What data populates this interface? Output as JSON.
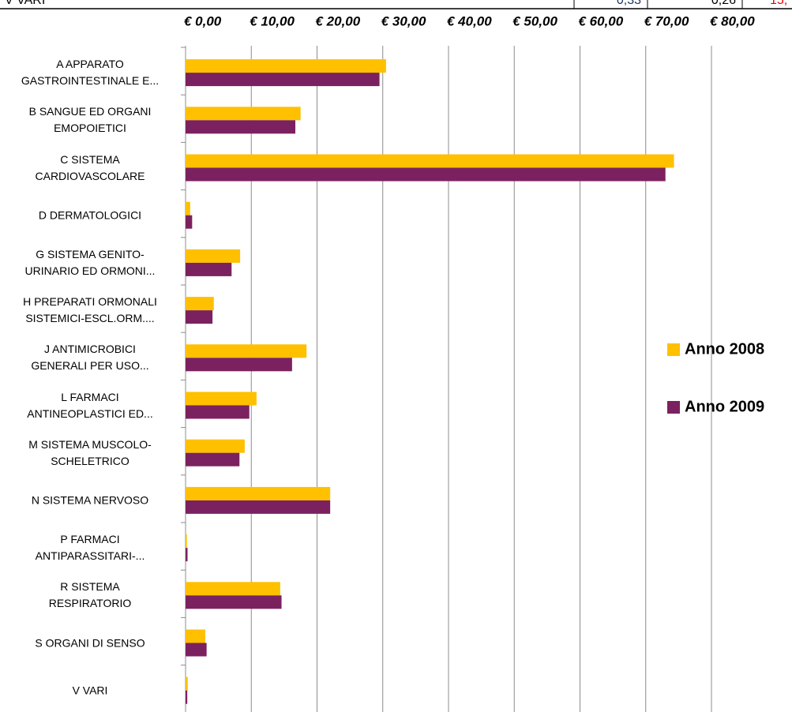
{
  "table": {
    "rows": [
      [
        "V VARI",
        "0,33",
        "0,26",
        "15,"
      ]
    ]
  },
  "chart_data": {
    "type": "barh",
    "categories": [
      "A APPARATO\nGASTROINTESTINALE E...",
      "B SANGUE ED ORGANI\nEMOPOIETICI",
      "C SISTEMA\nCARDIOVASCOLARE",
      "D DERMATOLOGICI",
      "G SISTEMA GENITO-\nURINARIO ED ORMONI...",
      "H PREPARATI ORMONALI\nSISTEMICI-ESCL.ORM....",
      "J ANTIMICROBICI\nGENERALI PER USO...",
      "L FARMACI\nANTINEOPLASTICI ED...",
      "M SISTEMA MUSCOLO-\nSCHELETRICO",
      "N SISTEMA NERVOSO",
      "P FARMACI\nANTIPARASSITARI-...",
      "R SISTEMA\nRESPIRATORIO",
      "S ORGANI DI SENSO",
      "V VARI"
    ],
    "series": [
      {
        "name": "Anno 2008",
        "color": "#ffc000",
        "values": [
          30.5,
          17.5,
          74.3,
          0.7,
          8.3,
          4.3,
          18.4,
          10.8,
          9.0,
          22.0,
          0.2,
          14.4,
          3.0,
          0.33
        ]
      },
      {
        "name": "Anno 2009",
        "color": "#7b2160",
        "values": [
          29.5,
          16.7,
          73.0,
          1.0,
          7.0,
          4.1,
          16.2,
          9.7,
          8.2,
          22.0,
          0.3,
          14.6,
          3.2,
          0.26
        ]
      }
    ],
    "xlim": [
      0,
      80
    ],
    "xticks": [
      {
        "value": 0,
        "label": "€ 0,00"
      },
      {
        "value": 10,
        "label": "€ 10,00"
      },
      {
        "value": 20,
        "label": "€ 20,00"
      },
      {
        "value": 30,
        "label": "€ 30,00"
      },
      {
        "value": 40,
        "label": "€ 40,00"
      },
      {
        "value": 50,
        "label": "€ 50,00"
      },
      {
        "value": 60,
        "label": "€ 60,00"
      },
      {
        "value": 70,
        "label": "€ 70,00"
      },
      {
        "value": 80,
        "label": "€ 80,00"
      }
    ],
    "grid": true,
    "legend": "right"
  }
}
